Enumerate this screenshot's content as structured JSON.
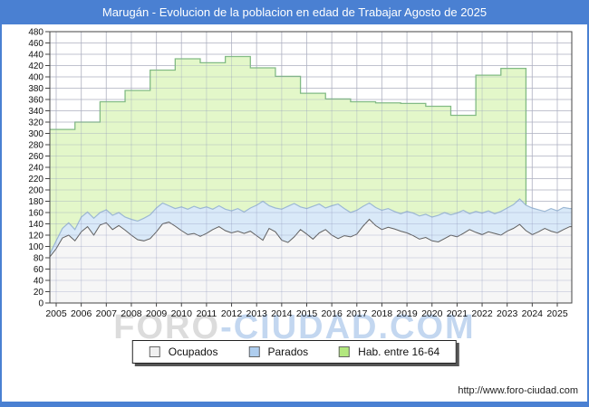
{
  "title_bar": {
    "text": "Marugán - Evolucion de la poblacion en edad de Trabajar Agosto de 2025"
  },
  "footer": {
    "url": "http://www.foro-ciudad.com"
  },
  "watermark": {
    "part1": "FORO",
    "part2": "-CIUDAD.COM"
  },
  "colors": {
    "accent_blue": "#4a80d2",
    "grid": "#d8d8d8",
    "plot_border": "#444444",
    "watermark_gray": "#dcdcdc",
    "watermark_blue": "#c3d7f0"
  },
  "legend": {
    "items": [
      {
        "label": "Ocupados",
        "color": "#f0f0f0"
      },
      {
        "label": "Parados",
        "color": "#aecdee"
      },
      {
        "label": "Hab. entre 16-64",
        "color": "#b2e77e"
      }
    ]
  },
  "chart_data": {
    "type": "area",
    "title": "Marugán - Evolucion de la poblacion en edad de Trabajar Agosto de 2025",
    "xlabel": "",
    "ylabel": "",
    "ylim": [
      0,
      480
    ],
    "ytick_step": 20,
    "grid": true,
    "legend_position": "bottom",
    "x_years": [
      "2005",
      "2006",
      "2007",
      "2008",
      "2009",
      "2010",
      "2011",
      "2012",
      "2013",
      "2014",
      "2015",
      "2016",
      "2017",
      "2018",
      "2019",
      "2020",
      "2021",
      "2022",
      "2023",
      "2024",
      "2025"
    ],
    "series": [
      {
        "name": "Hab. entre 16-64",
        "type": "step-area",
        "years_start": 2005,
        "values": [
          307,
          320,
          356,
          376,
          412,
          432,
          425,
          436,
          416,
          401,
          371,
          361,
          356,
          354,
          353,
          348,
          332,
          403,
          415
        ],
        "fill": "#e3f7c9",
        "line": "#82bb84"
      },
      {
        "name": "Parados",
        "type": "area",
        "x_start": 2004.75,
        "x_step": 0.25,
        "values": [
          87,
          110,
          132,
          142,
          130,
          152,
          161,
          150,
          160,
          165,
          155,
          160,
          152,
          148,
          145,
          150,
          156,
          168,
          177,
          172,
          167,
          170,
          166,
          171,
          167,
          170,
          166,
          172,
          166,
          163,
          167,
          161,
          168,
          173,
          180,
          172,
          168,
          166,
          171,
          176,
          170,
          167,
          171,
          175,
          168,
          172,
          175,
          167,
          160,
          164,
          171,
          177,
          169,
          164,
          167,
          162,
          158,
          162,
          159,
          154,
          157,
          152,
          155,
          160,
          156,
          159,
          164,
          158,
          162,
          159,
          163,
          158,
          162,
          168,
          174,
          184,
          173,
          168,
          165,
          162,
          167,
          163,
          169,
          167
        ],
        "fill": "#d9e9f8",
        "line": "#9cb8d4"
      },
      {
        "name": "Ocupados",
        "type": "area",
        "x_start": 2004.75,
        "x_step": 0.25,
        "values": [
          82,
          96,
          115,
          120,
          110,
          126,
          135,
          120,
          138,
          142,
          130,
          137,
          129,
          120,
          112,
          110,
          114,
          126,
          140,
          143,
          136,
          128,
          121,
          123,
          118,
          123,
          130,
          135,
          128,
          124,
          127,
          123,
          127,
          119,
          111,
          132,
          126,
          111,
          107,
          117,
          130,
          122,
          113,
          124,
          130,
          120,
          114,
          119,
          117,
          122,
          136,
          148,
          137,
          130,
          134,
          131,
          127,
          124,
          119,
          113,
          116,
          110,
          108,
          114,
          120,
          117,
          123,
          130,
          125,
          121,
          126,
          123,
          120,
          127,
          132,
          139,
          128,
          121,
          126,
          132,
          127,
          124,
          130,
          135
        ],
        "fill": "#f6f6f6",
        "line": "#606060"
      }
    ]
  }
}
